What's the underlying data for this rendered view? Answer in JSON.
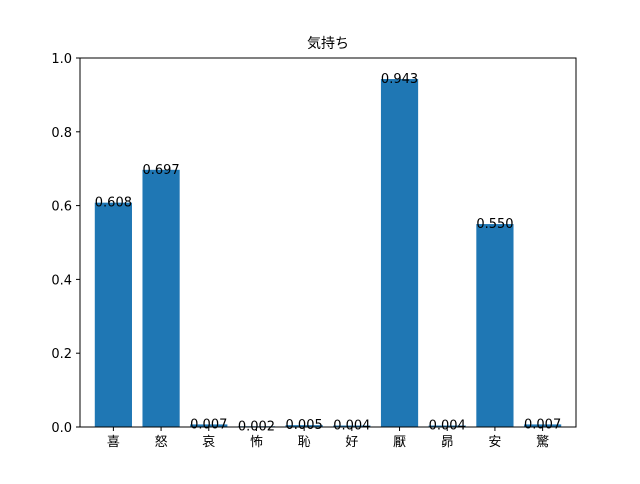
{
  "chart_data": {
    "type": "bar",
    "title": "気持ち",
    "xlabel": "",
    "ylabel": "",
    "categories": [
      "喜",
      "怒",
      "哀",
      "怖",
      "恥",
      "好",
      "厭",
      "昴",
      "安",
      "驚"
    ],
    "values": [
      0.608,
      0.697,
      0.007,
      0.002,
      0.005,
      0.004,
      0.943,
      0.004,
      0.55,
      0.007
    ],
    "data_labels": [
      "0.608",
      "0.697",
      "0.007",
      "0.002",
      "0.005",
      "0.004",
      "0.943",
      "0.004",
      "0.550",
      "0.007"
    ],
    "ylim": [
      0,
      1.0
    ],
    "yticks": [
      "0.0",
      "0.2",
      "0.4",
      "0.6",
      "0.8",
      "1.0"
    ],
    "bar_color": "#1f77b4",
    "grid": false,
    "legend": "none"
  }
}
